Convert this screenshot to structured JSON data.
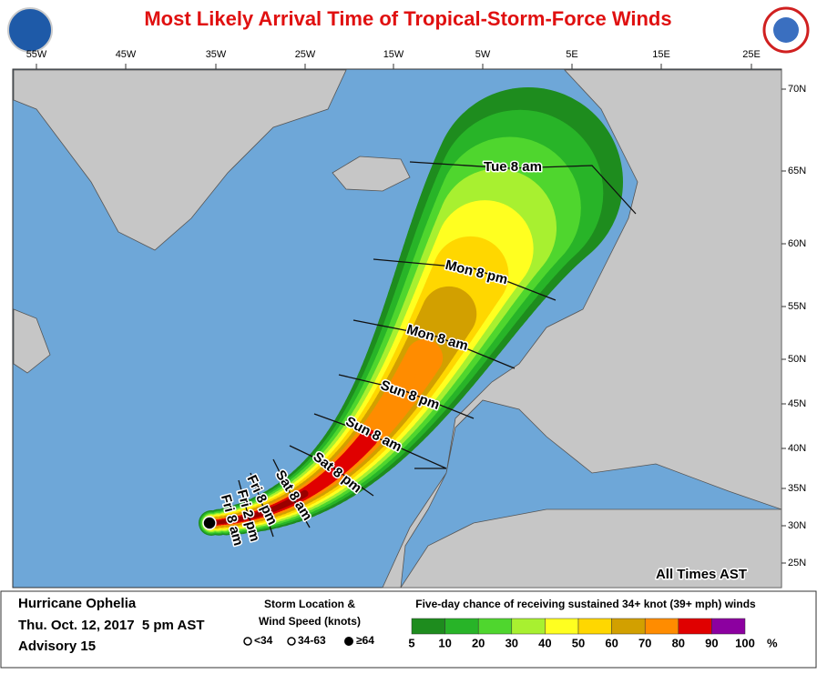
{
  "title": "Most Likely Arrival Time of Tropical-Storm-Force Winds",
  "lon_labels": [
    "55W",
    "45W",
    "35W",
    "25W",
    "15W",
    "5W",
    "5E",
    "15E",
    "25E"
  ],
  "lat_labels": [
    "70N",
    "65N",
    "60N",
    "55N",
    "50N",
    "45N",
    "40N",
    "35N",
    "30N",
    "25N"
  ],
  "time_labels": [
    "Tue   8   am",
    "Mon  8  pm",
    "Mon  8  am",
    "Sun  8 pm",
    "Sun 8 am",
    "Sat 8 pm",
    "Sat 8 am",
    "Fri 8 pm",
    "Fri 2 pm",
    "Fri 8 am"
  ],
  "time_note": "All Times AST",
  "storm": {
    "name": "Hurricane Ophelia",
    "date": "Thu. Oct. 12, 2017  5 pm AST",
    "advisory": "Advisory 15"
  },
  "location_legend": {
    "title": [
      "Storm Location &",
      "Wind Speed (knots)"
    ],
    "items": [
      "<34",
      "34-63",
      "≥64"
    ]
  },
  "scale": {
    "title": "Five-day chance of receiving sustained 34+ knot (39+ mph) winds",
    "ticks": [
      5,
      10,
      20,
      30,
      40,
      50,
      60,
      70,
      80,
      90,
      100
    ],
    "unit": "%",
    "colors": [
      "#1e8c1e",
      "#28b428",
      "#4fd62e",
      "#a8f030",
      "#ffff20",
      "#ffd700",
      "#d2a000",
      "#ff8c00",
      "#e00000",
      "#9a0000",
      "#8c00a0"
    ]
  }
}
